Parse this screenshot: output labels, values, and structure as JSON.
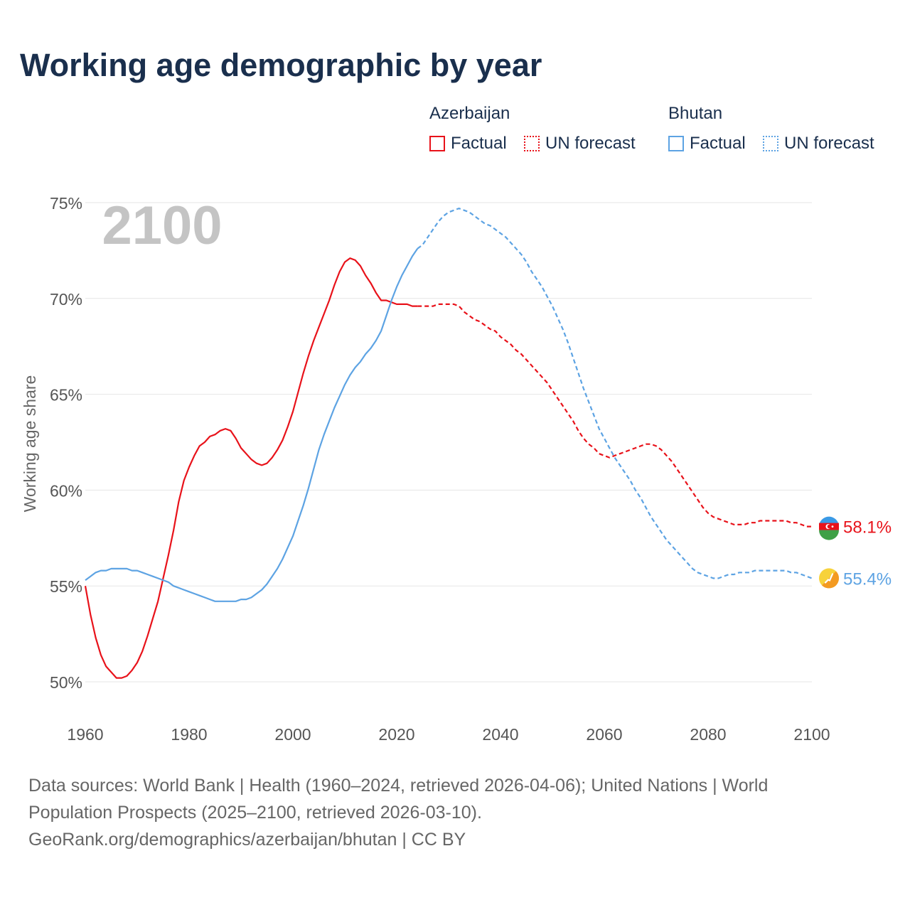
{
  "title": "Working age demographic by year",
  "legend": {
    "azerbaijan": {
      "name": "Azerbaijan",
      "factual": "Factual",
      "forecast": "UN forecast"
    },
    "bhutan": {
      "name": "Bhutan",
      "factual": "Factual",
      "forecast": "UN forecast"
    }
  },
  "colors": {
    "azerbaijan": "#e8121a",
    "bhutan": "#5da3e3",
    "grid": "#e6e6e6",
    "year_watermark": "#c4c4c4",
    "axis_text": "#555555"
  },
  "sources": {
    "line1": "Data sources: World Bank | Health (1960–2024, retrieved 2026-04-06); United Nations | World",
    "line2": "Population Prospects (2025–2100, retrieved 2026-03-10).",
    "line3": "GeoRank.org/demographics/azerbaijan/bhutan | CC BY"
  },
  "chart_data": {
    "type": "line",
    "title": "Working age demographic by year",
    "year_watermark": "2100",
    "ylabel": "Working age share",
    "xlabel": "",
    "xlim": [
      1960,
      2100
    ],
    "ylim": [
      50,
      75
    ],
    "x_ticks": [
      "1960",
      "1980",
      "2000",
      "2020",
      "2040",
      "2060",
      "2080",
      "2100"
    ],
    "x_tick_values": [
      1960,
      1980,
      2000,
      2020,
      2040,
      2060,
      2080,
      2100
    ],
    "y_ticks": [
      "50%",
      "55%",
      "60%",
      "65%",
      "70%",
      "75%"
    ],
    "y_tick_values": [
      50,
      55,
      60,
      65,
      70,
      75
    ],
    "factual_end_year": 2024,
    "series": [
      {
        "name": "Azerbaijan",
        "color": "#e8121a",
        "end_label": "58.1%",
        "points": [
          [
            1960,
            55.0
          ],
          [
            1961,
            53.5
          ],
          [
            1962,
            52.3
          ],
          [
            1963,
            51.4
          ],
          [
            1964,
            50.8
          ],
          [
            1965,
            50.5
          ],
          [
            1966,
            50.2
          ],
          [
            1967,
            50.2
          ],
          [
            1968,
            50.3
          ],
          [
            1969,
            50.6
          ],
          [
            1970,
            51.0
          ],
          [
            1971,
            51.6
          ],
          [
            1972,
            52.4
          ],
          [
            1973,
            53.3
          ],
          [
            1974,
            54.2
          ],
          [
            1975,
            55.4
          ],
          [
            1976,
            56.6
          ],
          [
            1977,
            57.9
          ],
          [
            1978,
            59.4
          ],
          [
            1979,
            60.5
          ],
          [
            1980,
            61.2
          ],
          [
            1981,
            61.8
          ],
          [
            1982,
            62.3
          ],
          [
            1983,
            62.5
          ],
          [
            1984,
            62.8
          ],
          [
            1985,
            62.9
          ],
          [
            1986,
            63.1
          ],
          [
            1987,
            63.2
          ],
          [
            1988,
            63.1
          ],
          [
            1989,
            62.7
          ],
          [
            1990,
            62.2
          ],
          [
            1991,
            61.9
          ],
          [
            1992,
            61.6
          ],
          [
            1993,
            61.4
          ],
          [
            1994,
            61.3
          ],
          [
            1995,
            61.4
          ],
          [
            1996,
            61.7
          ],
          [
            1997,
            62.1
          ],
          [
            1998,
            62.6
          ],
          [
            1999,
            63.3
          ],
          [
            2000,
            64.1
          ],
          [
            2001,
            65.1
          ],
          [
            2002,
            66.1
          ],
          [
            2003,
            67.0
          ],
          [
            2004,
            67.8
          ],
          [
            2005,
            68.5
          ],
          [
            2006,
            69.2
          ],
          [
            2007,
            69.9
          ],
          [
            2008,
            70.7
          ],
          [
            2009,
            71.4
          ],
          [
            2010,
            71.9
          ],
          [
            2011,
            72.1
          ],
          [
            2012,
            72.0
          ],
          [
            2013,
            71.7
          ],
          [
            2014,
            71.2
          ],
          [
            2015,
            70.8
          ],
          [
            2016,
            70.3
          ],
          [
            2017,
            69.9
          ],
          [
            2018,
            69.9
          ],
          [
            2019,
            69.8
          ],
          [
            2020,
            69.7
          ],
          [
            2021,
            69.7
          ],
          [
            2022,
            69.7
          ],
          [
            2023,
            69.6
          ],
          [
            2024,
            69.6
          ],
          [
            2025,
            69.6
          ],
          [
            2026,
            69.6
          ],
          [
            2027,
            69.6
          ],
          [
            2028,
            69.7
          ],
          [
            2029,
            69.7
          ],
          [
            2030,
            69.7
          ],
          [
            2031,
            69.7
          ],
          [
            2032,
            69.6
          ],
          [
            2033,
            69.3
          ],
          [
            2034,
            69.1
          ],
          [
            2035,
            68.9
          ],
          [
            2036,
            68.8
          ],
          [
            2037,
            68.6
          ],
          [
            2038,
            68.4
          ],
          [
            2039,
            68.3
          ],
          [
            2040,
            68.0
          ],
          [
            2041,
            67.8
          ],
          [
            2042,
            67.6
          ],
          [
            2043,
            67.3
          ],
          [
            2044,
            67.1
          ],
          [
            2045,
            66.8
          ],
          [
            2046,
            66.5
          ],
          [
            2047,
            66.2
          ],
          [
            2048,
            65.9
          ],
          [
            2049,
            65.6
          ],
          [
            2050,
            65.2
          ],
          [
            2051,
            64.8
          ],
          [
            2052,
            64.4
          ],
          [
            2053,
            64.0
          ],
          [
            2054,
            63.6
          ],
          [
            2055,
            63.1
          ],
          [
            2056,
            62.7
          ],
          [
            2057,
            62.4
          ],
          [
            2058,
            62.2
          ],
          [
            2059,
            61.9
          ],
          [
            2060,
            61.8
          ],
          [
            2061,
            61.7
          ],
          [
            2062,
            61.8
          ],
          [
            2063,
            61.9
          ],
          [
            2064,
            62.0
          ],
          [
            2065,
            62.1
          ],
          [
            2066,
            62.2
          ],
          [
            2067,
            62.3
          ],
          [
            2068,
            62.4
          ],
          [
            2069,
            62.4
          ],
          [
            2070,
            62.3
          ],
          [
            2071,
            62.1
          ],
          [
            2072,
            61.8
          ],
          [
            2073,
            61.5
          ],
          [
            2074,
            61.1
          ],
          [
            2075,
            60.7
          ],
          [
            2076,
            60.3
          ],
          [
            2077,
            59.9
          ],
          [
            2078,
            59.5
          ],
          [
            2079,
            59.1
          ],
          [
            2080,
            58.8
          ],
          [
            2081,
            58.6
          ],
          [
            2082,
            58.5
          ],
          [
            2083,
            58.4
          ],
          [
            2084,
            58.3
          ],
          [
            2085,
            58.2
          ],
          [
            2086,
            58.2
          ],
          [
            2087,
            58.2
          ],
          [
            2088,
            58.3
          ],
          [
            2089,
            58.3
          ],
          [
            2090,
            58.4
          ],
          [
            2091,
            58.4
          ],
          [
            2092,
            58.4
          ],
          [
            2093,
            58.4
          ],
          [
            2094,
            58.4
          ],
          [
            2095,
            58.4
          ],
          [
            2096,
            58.3
          ],
          [
            2097,
            58.3
          ],
          [
            2098,
            58.2
          ],
          [
            2099,
            58.1
          ],
          [
            2100,
            58.1
          ]
        ]
      },
      {
        "name": "Bhutan",
        "color": "#5da3e3",
        "end_label": "55.4%",
        "points": [
          [
            1960,
            55.3
          ],
          [
            1961,
            55.5
          ],
          [
            1962,
            55.7
          ],
          [
            1963,
            55.8
          ],
          [
            1964,
            55.8
          ],
          [
            1965,
            55.9
          ],
          [
            1966,
            55.9
          ],
          [
            1967,
            55.9
          ],
          [
            1968,
            55.9
          ],
          [
            1969,
            55.8
          ],
          [
            1970,
            55.8
          ],
          [
            1971,
            55.7
          ],
          [
            1972,
            55.6
          ],
          [
            1973,
            55.5
          ],
          [
            1974,
            55.4
          ],
          [
            1975,
            55.3
          ],
          [
            1976,
            55.2
          ],
          [
            1977,
            55.0
          ],
          [
            1978,
            54.9
          ],
          [
            1979,
            54.8
          ],
          [
            1980,
            54.7
          ],
          [
            1981,
            54.6
          ],
          [
            1982,
            54.5
          ],
          [
            1983,
            54.4
          ],
          [
            1984,
            54.3
          ],
          [
            1985,
            54.2
          ],
          [
            1986,
            54.2
          ],
          [
            1987,
            54.2
          ],
          [
            1988,
            54.2
          ],
          [
            1989,
            54.2
          ],
          [
            1990,
            54.3
          ],
          [
            1991,
            54.3
          ],
          [
            1992,
            54.4
          ],
          [
            1993,
            54.6
          ],
          [
            1994,
            54.8
          ],
          [
            1995,
            55.1
          ],
          [
            1996,
            55.5
          ],
          [
            1997,
            55.9
          ],
          [
            1998,
            56.4
          ],
          [
            1999,
            57.0
          ],
          [
            2000,
            57.6
          ],
          [
            2001,
            58.4
          ],
          [
            2002,
            59.2
          ],
          [
            2003,
            60.1
          ],
          [
            2004,
            61.1
          ],
          [
            2005,
            62.1
          ],
          [
            2006,
            62.9
          ],
          [
            2007,
            63.6
          ],
          [
            2008,
            64.3
          ],
          [
            2009,
            64.9
          ],
          [
            2010,
            65.5
          ],
          [
            2011,
            66.0
          ],
          [
            2012,
            66.4
          ],
          [
            2013,
            66.7
          ],
          [
            2014,
            67.1
          ],
          [
            2015,
            67.4
          ],
          [
            2016,
            67.8
          ],
          [
            2017,
            68.3
          ],
          [
            2018,
            69.1
          ],
          [
            2019,
            69.9
          ],
          [
            2020,
            70.6
          ],
          [
            2021,
            71.2
          ],
          [
            2022,
            71.7
          ],
          [
            2023,
            72.2
          ],
          [
            2024,
            72.6
          ],
          [
            2025,
            72.8
          ],
          [
            2026,
            73.2
          ],
          [
            2027,
            73.6
          ],
          [
            2028,
            74.0
          ],
          [
            2029,
            74.3
          ],
          [
            2030,
            74.5
          ],
          [
            2031,
            74.6
          ],
          [
            2032,
            74.7
          ],
          [
            2033,
            74.6
          ],
          [
            2034,
            74.5
          ],
          [
            2035,
            74.3
          ],
          [
            2036,
            74.1
          ],
          [
            2037,
            73.9
          ],
          [
            2038,
            73.8
          ],
          [
            2039,
            73.6
          ],
          [
            2040,
            73.4
          ],
          [
            2041,
            73.2
          ],
          [
            2042,
            72.9
          ],
          [
            2043,
            72.6
          ],
          [
            2044,
            72.3
          ],
          [
            2045,
            71.9
          ],
          [
            2046,
            71.4
          ],
          [
            2047,
            71.0
          ],
          [
            2048,
            70.6
          ],
          [
            2049,
            70.1
          ],
          [
            2050,
            69.6
          ],
          [
            2051,
            69.0
          ],
          [
            2052,
            68.4
          ],
          [
            2053,
            67.7
          ],
          [
            2054,
            66.9
          ],
          [
            2055,
            66.1
          ],
          [
            2056,
            65.3
          ],
          [
            2057,
            64.6
          ],
          [
            2058,
            63.9
          ],
          [
            2059,
            63.2
          ],
          [
            2060,
            62.7
          ],
          [
            2061,
            62.2
          ],
          [
            2062,
            61.7
          ],
          [
            2063,
            61.3
          ],
          [
            2064,
            60.9
          ],
          [
            2065,
            60.5
          ],
          [
            2066,
            60.0
          ],
          [
            2067,
            59.6
          ],
          [
            2068,
            59.1
          ],
          [
            2069,
            58.6
          ],
          [
            2070,
            58.2
          ],
          [
            2071,
            57.8
          ],
          [
            2072,
            57.4
          ],
          [
            2073,
            57.1
          ],
          [
            2074,
            56.8
          ],
          [
            2075,
            56.5
          ],
          [
            2076,
            56.2
          ],
          [
            2077,
            55.9
          ],
          [
            2078,
            55.7
          ],
          [
            2079,
            55.6
          ],
          [
            2080,
            55.5
          ],
          [
            2081,
            55.4
          ],
          [
            2082,
            55.4
          ],
          [
            2083,
            55.5
          ],
          [
            2084,
            55.6
          ],
          [
            2085,
            55.6
          ],
          [
            2086,
            55.7
          ],
          [
            2087,
            55.7
          ],
          [
            2088,
            55.7
          ],
          [
            2089,
            55.8
          ],
          [
            2090,
            55.8
          ],
          [
            2091,
            55.8
          ],
          [
            2092,
            55.8
          ],
          [
            2093,
            55.8
          ],
          [
            2094,
            55.8
          ],
          [
            2095,
            55.8
          ],
          [
            2096,
            55.7
          ],
          [
            2097,
            55.7
          ],
          [
            2098,
            55.6
          ],
          [
            2099,
            55.5
          ],
          [
            2100,
            55.4
          ]
        ]
      }
    ]
  }
}
